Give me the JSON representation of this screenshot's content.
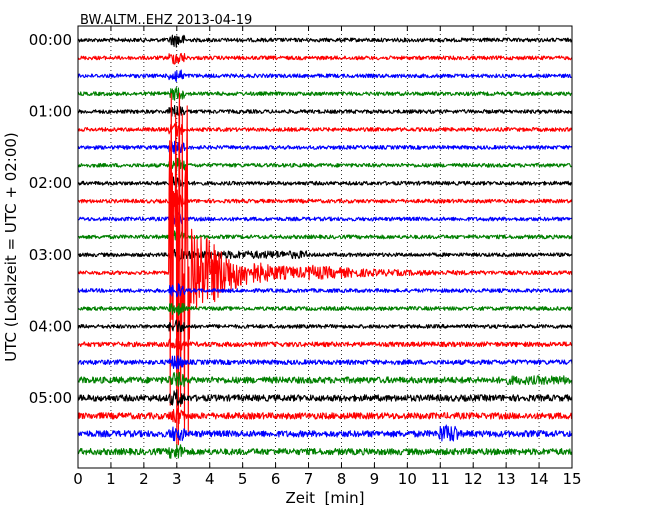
{
  "chart_data": {
    "type": "line",
    "title": "BW.ALTM..EHZ 2013-04-19",
    "xlabel": "Zeit  [min]",
    "ylabel": "UTC (Lokalzeit = UTC + 02:00)",
    "xlim": [
      0,
      15
    ],
    "x_ticks": [
      "0",
      "1",
      "2",
      "3",
      "4",
      "5",
      "6",
      "7",
      "8",
      "9",
      "10",
      "11",
      "12",
      "13",
      "14",
      "15"
    ],
    "y_tick_labels": [
      "00:00",
      "01:00",
      "02:00",
      "03:00",
      "04:00",
      "05:00"
    ],
    "trace_interval_min": 15,
    "trace_count": 24,
    "trace_colors": [
      "#000000",
      "#ff0000",
      "#0000ff",
      "#008000"
    ],
    "grid": "vertical dotted at each minute",
    "event": {
      "trace_start": "03:15",
      "onset_min": 2.75,
      "peak_min": 3.0,
      "coda_end_min": 7.0,
      "color": "#ff0000"
    },
    "noise_bursts": [
      {
        "trace_start": "05:30",
        "at_min": 11.25,
        "color": "#0000ff"
      },
      {
        "trace_start": "04:45",
        "range_min": [
          13,
          15
        ],
        "color": "#008000"
      }
    ]
  }
}
